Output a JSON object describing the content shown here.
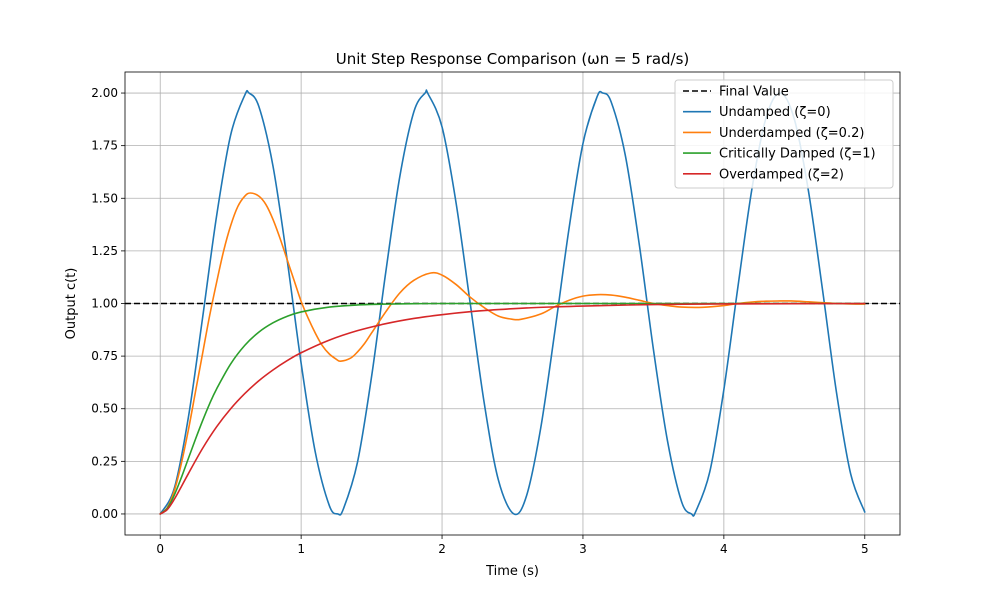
{
  "chart_data": {
    "type": "line",
    "title": "Unit Step Response Comparison (ωn = 5 rad/s)",
    "xlabel": "Time (s)",
    "ylabel": "Output c(t)",
    "xlim": [
      -0.25,
      5.25
    ],
    "ylim": [
      -0.1,
      2.1
    ],
    "xticks": [
      0,
      1,
      2,
      3,
      4,
      5
    ],
    "xtick_labels": [
      "0",
      "1",
      "2",
      "3",
      "4",
      "5"
    ],
    "yticks": [
      0.0,
      0.25,
      0.5,
      0.75,
      1.0,
      1.25,
      1.5,
      1.75,
      2.0
    ],
    "ytick_labels": [
      "0.00",
      "0.25",
      "0.50",
      "0.75",
      "1.00",
      "1.25",
      "1.50",
      "1.75",
      "2.00"
    ],
    "grid": true,
    "legend_position": "top-right",
    "reference_lines": [
      {
        "name": "Final Value",
        "y": 1.0,
        "color": "#000000",
        "style": "dashed"
      }
    ],
    "series": [
      {
        "name": "Undamped (ζ=0)",
        "color": "#1f77b4",
        "x": [
          0,
          0.1,
          0.2,
          0.3,
          0.4,
          0.5,
          0.6,
          0.63,
          0.7,
          0.8,
          0.9,
          1.0,
          1.1,
          1.2,
          1.26,
          1.3,
          1.4,
          1.5,
          1.6,
          1.7,
          1.8,
          1.88,
          1.9,
          2.0,
          2.1,
          2.2,
          2.3,
          2.4,
          2.51,
          2.6,
          2.7,
          2.8,
          2.9,
          3.0,
          3.1,
          3.14,
          3.2,
          3.3,
          3.4,
          3.5,
          3.6,
          3.7,
          3.77,
          3.8,
          3.9,
          4.0,
          4.1,
          4.2,
          4.3,
          4.4,
          4.4,
          4.5,
          4.6,
          4.7,
          4.8,
          4.9,
          5.0
        ],
        "y": [
          0,
          0.122,
          0.46,
          0.929,
          1.416,
          1.801,
          1.99,
          2.0,
          1.936,
          1.654,
          1.211,
          0.716,
          0.295,
          0.04,
          0.0,
          0.024,
          0.246,
          0.653,
          1.146,
          1.602,
          1.911,
          2.0,
          1.997,
          1.839,
          1.476,
          1.0,
          0.524,
          0.161,
          0.0,
          0.087,
          0.407,
          0.865,
          1.351,
          1.76,
          1.982,
          2.0,
          1.958,
          1.706,
          1.279,
          0.782,
          0.347,
          0.058,
          0.0,
          0.011,
          0.2,
          0.591,
          1.08,
          1.548,
          1.884,
          2.0,
          2.0,
          1.876,
          1.536,
          1.066,
          0.574,
          0.19,
          0.009
        ]
      },
      {
        "name": "Underdamped (ζ=0.2)",
        "color": "#ff7f0e",
        "x": [
          0,
          0.05,
          0.1,
          0.15,
          0.2,
          0.25,
          0.3,
          0.35,
          0.4,
          0.45,
          0.5,
          0.55,
          0.6,
          0.64,
          0.7,
          0.75,
          0.8,
          0.85,
          0.9,
          0.95,
          1.0,
          1.05,
          1.1,
          1.15,
          1.2,
          1.25,
          1.28,
          1.35,
          1.4,
          1.45,
          1.5,
          1.6,
          1.7,
          1.8,
          1.92,
          2.0,
          2.1,
          2.2,
          2.3,
          2.4,
          2.5,
          2.56,
          2.7,
          2.8,
          2.9,
          3.0,
          3.1,
          3.2,
          3.3,
          3.4,
          3.5,
          3.6,
          3.7,
          3.85,
          4.0,
          4.1,
          4.2,
          4.3,
          4.4,
          4.48,
          4.6,
          4.7,
          4.8,
          4.9,
          5.0
        ],
        "y": [
          0,
          0.03,
          0.11,
          0.24,
          0.4,
          0.58,
          0.76,
          0.94,
          1.1,
          1.25,
          1.37,
          1.46,
          1.51,
          1.525,
          1.51,
          1.47,
          1.4,
          1.31,
          1.21,
          1.11,
          1.01,
          0.93,
          0.86,
          0.8,
          0.76,
          0.735,
          0.726,
          0.74,
          0.77,
          0.81,
          0.86,
          0.96,
          1.05,
          1.11,
          1.145,
          1.135,
          1.09,
          1.03,
          0.98,
          0.94,
          0.925,
          0.925,
          0.95,
          0.985,
          1.015,
          1.035,
          1.042,
          1.04,
          1.03,
          1.015,
          1.0,
          0.99,
          0.983,
          0.982,
          0.99,
          1.0,
          1.007,
          1.011,
          1.012,
          1.012,
          1.008,
          1.004,
          1.0,
          0.998,
          0.997
        ]
      },
      {
        "name": "Critically Damped (ζ=1)",
        "color": "#2ca02c",
        "x": [
          0,
          0.05,
          0.1,
          0.15,
          0.2,
          0.25,
          0.3,
          0.35,
          0.4,
          0.5,
          0.6,
          0.7,
          0.8,
          0.9,
          1.0,
          1.2,
          1.4,
          1.6,
          1.8,
          2.0,
          2.5,
          3.0,
          4.0,
          5.0
        ],
        "y": [
          0,
          0.026,
          0.09,
          0.173,
          0.264,
          0.355,
          0.442,
          0.523,
          0.594,
          0.713,
          0.801,
          0.864,
          0.908,
          0.939,
          0.96,
          0.983,
          0.993,
          0.997,
          0.999,
          1.0,
          1.0,
          1.0,
          1.0,
          1.0
        ]
      },
      {
        "name": "Overdamped (ζ=2)",
        "color": "#d62728",
        "x": [
          0,
          0.05,
          0.1,
          0.15,
          0.2,
          0.3,
          0.4,
          0.5,
          0.6,
          0.7,
          0.8,
          0.9,
          1.0,
          1.2,
          1.4,
          1.6,
          1.8,
          2.0,
          2.2,
          2.4,
          2.6,
          2.8,
          3.0,
          3.5,
          4.0,
          4.5,
          5.0
        ],
        "y": [
          0,
          0.021,
          0.07,
          0.13,
          0.192,
          0.311,
          0.414,
          0.5,
          0.572,
          0.633,
          0.684,
          0.728,
          0.766,
          0.826,
          0.871,
          0.904,
          0.929,
          0.947,
          0.961,
          0.971,
          0.979,
          0.984,
          0.988,
          0.995,
          0.998,
          0.999,
          1.0
        ]
      }
    ]
  }
}
